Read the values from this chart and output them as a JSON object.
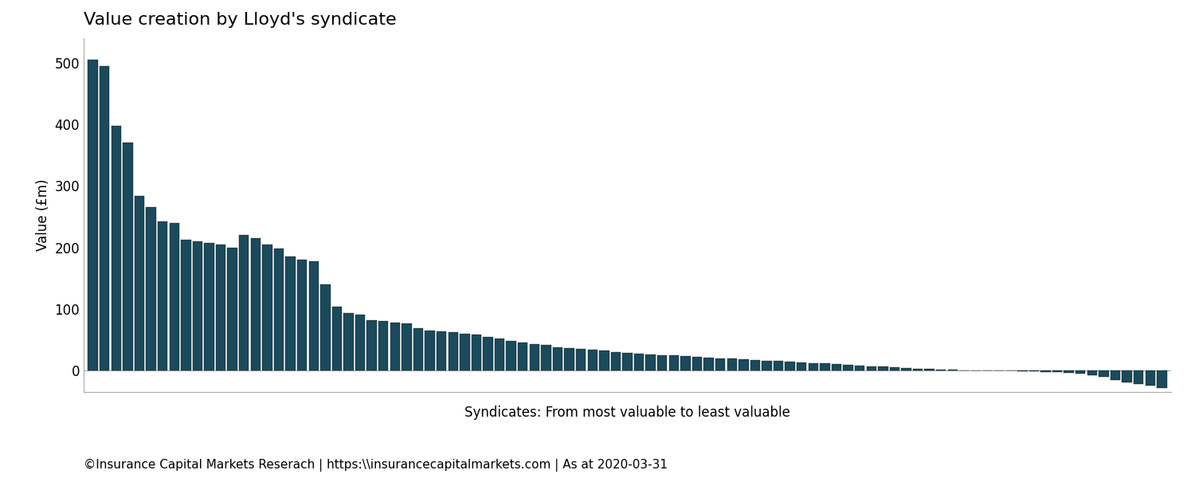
{
  "title": "Value creation by Lloyd's syndicate",
  "xlabel": "Syndicates: From most valuable to least valuable",
  "ylabel": "Value (£m)",
  "footer": "©Insurance Capital Markets Reserach | https:\\\\insurancecapitalmarkets.com | As at 2020-03-31",
  "bar_color": "#1a4a5c",
  "background_color": "#ffffff",
  "values": [
    505,
    495,
    397,
    370,
    283,
    265,
    242,
    240,
    213,
    210,
    207,
    204,
    200,
    220,
    215,
    205,
    198,
    185,
    180,
    178,
    140,
    103,
    93,
    90,
    82,
    80,
    78,
    77,
    68,
    65,
    63,
    62,
    60,
    58,
    55,
    52,
    48,
    45,
    43,
    42,
    38,
    36,
    35,
    33,
    32,
    30,
    28,
    27,
    26,
    25,
    24,
    23,
    22,
    21,
    20,
    19,
    18,
    17,
    16,
    15,
    14,
    13,
    12,
    11,
    10,
    9,
    8,
    7,
    6,
    5,
    4,
    3,
    2,
    1,
    0.8,
    0.5,
    0.3,
    0.1,
    0,
    -0.5,
    -1,
    -1.5,
    -2,
    -3,
    -4,
    -5,
    -8,
    -10,
    -15,
    -20,
    -22,
    -25,
    -28
  ],
  "ylim": [
    -35,
    540
  ],
  "yticks": [
    0,
    100,
    200,
    300,
    400,
    500
  ],
  "title_fontsize": 16,
  "axis_fontsize": 12,
  "footer_fontsize": 11
}
